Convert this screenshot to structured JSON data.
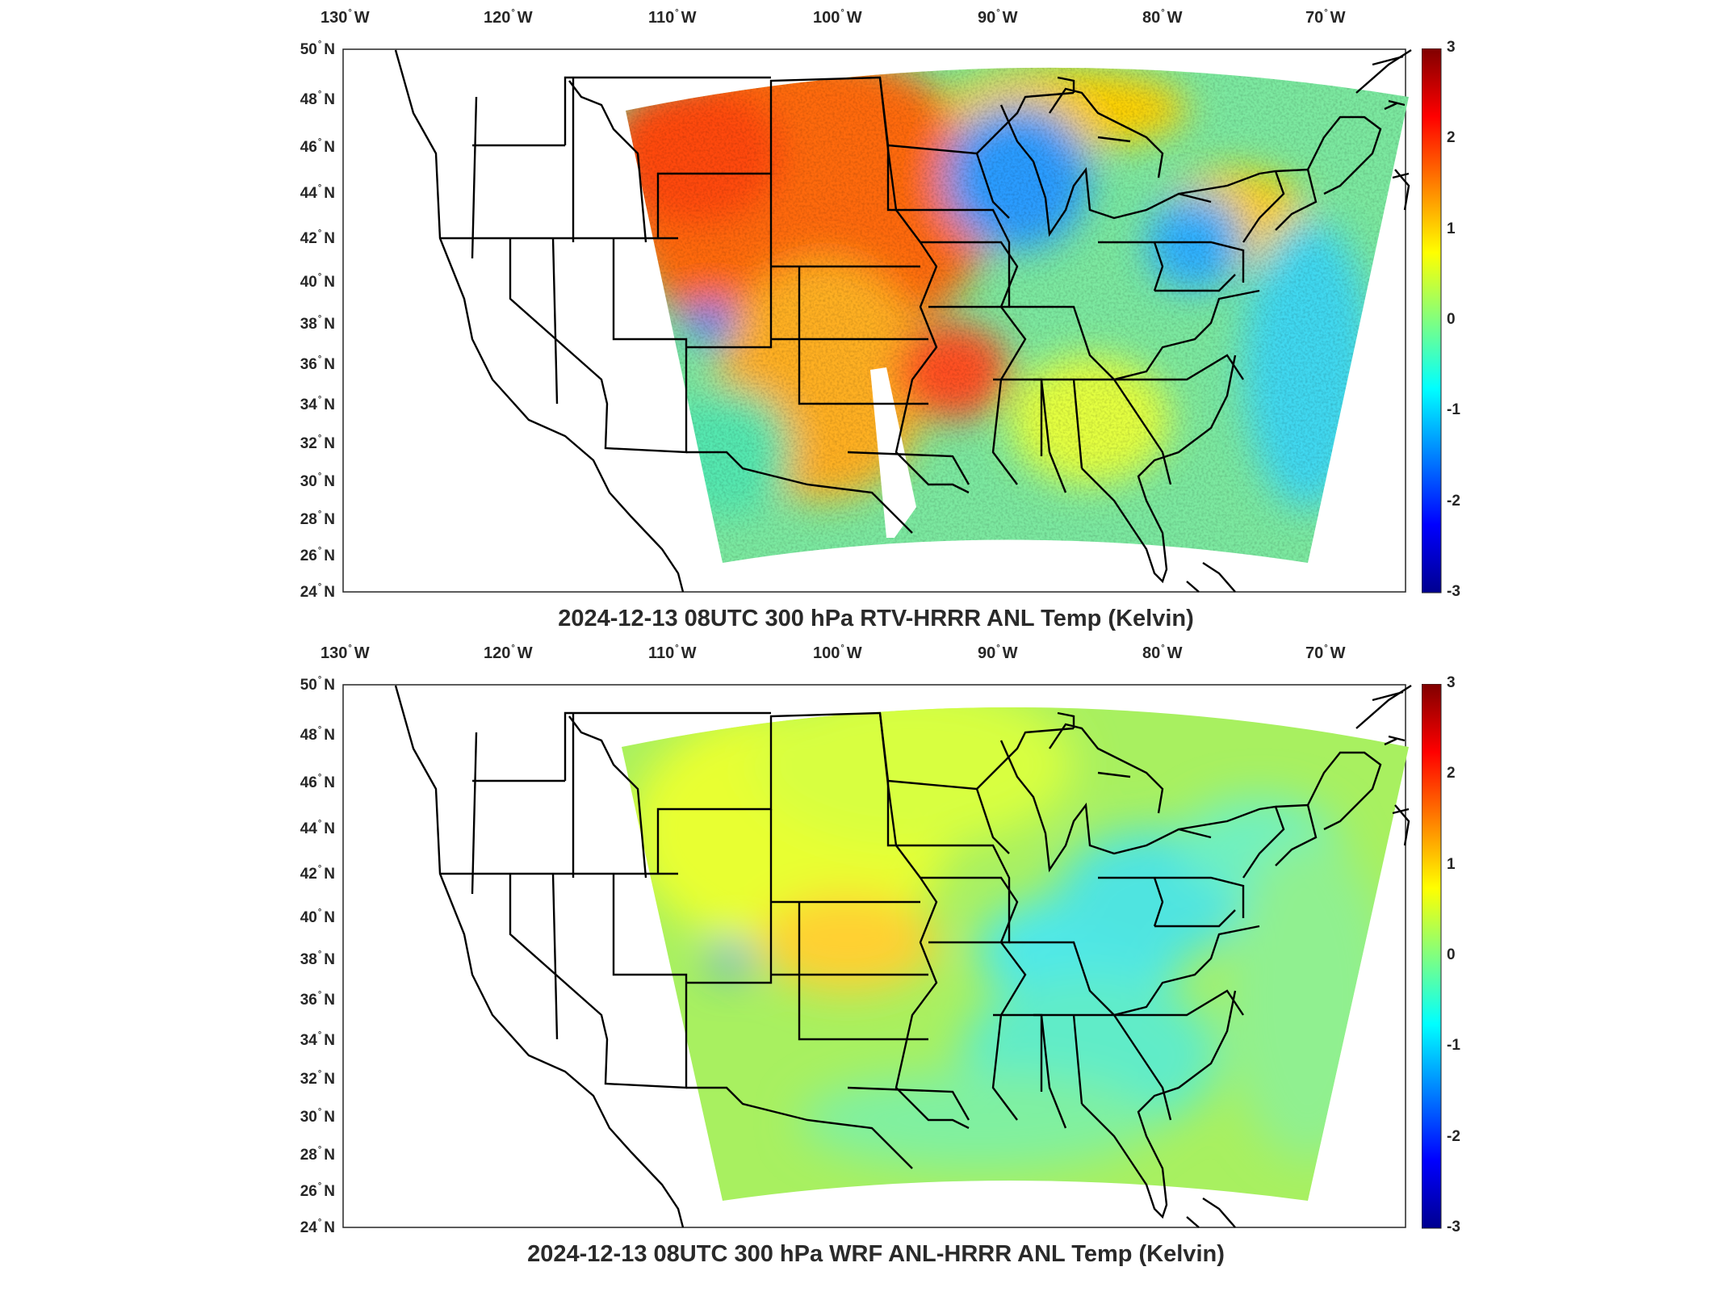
{
  "panels": [
    {
      "id": "top",
      "title": "2024-12-13 08UTC 300 hPa RTV-HRRR ANL Temp (Kelvin)",
      "field": "rtv",
      "lon_ticks": [
        {
          "deg": "130",
          "hemi": "W"
        },
        {
          "deg": "120",
          "hemi": "W"
        },
        {
          "deg": "110",
          "hemi": "W"
        },
        {
          "deg": "100",
          "hemi": "W"
        },
        {
          "deg": "90",
          "hemi": "W"
        },
        {
          "deg": "80",
          "hemi": "W"
        },
        {
          "deg": "70",
          "hemi": "W"
        }
      ],
      "lat_ticks": [
        {
          "deg": "50",
          "hemi": "N"
        },
        {
          "deg": "48",
          "hemi": "N"
        },
        {
          "deg": "46",
          "hemi": "N"
        },
        {
          "deg": "44",
          "hemi": "N"
        },
        {
          "deg": "42",
          "hemi": "N"
        },
        {
          "deg": "40",
          "hemi": "N"
        },
        {
          "deg": "38",
          "hemi": "N"
        },
        {
          "deg": "36",
          "hemi": "N"
        },
        {
          "deg": "34",
          "hemi": "N"
        },
        {
          "deg": "32",
          "hemi": "N"
        },
        {
          "deg": "30",
          "hemi": "N"
        },
        {
          "deg": "28",
          "hemi": "N"
        },
        {
          "deg": "26",
          "hemi": "N"
        },
        {
          "deg": "24",
          "hemi": "N"
        }
      ],
      "colorbar_ticks": [
        "3",
        "2",
        "1",
        "0",
        "-1",
        "-2",
        "-3"
      ]
    },
    {
      "id": "bottom",
      "title": "2024-12-13 08UTC 300 hPa WRF ANL-HRRR ANL Temp (Kelvin)",
      "field": "wrf",
      "lon_ticks": [
        {
          "deg": "130",
          "hemi": "W"
        },
        {
          "deg": "120",
          "hemi": "W"
        },
        {
          "deg": "110",
          "hemi": "W"
        },
        {
          "deg": "100",
          "hemi": "W"
        },
        {
          "deg": "90",
          "hemi": "W"
        },
        {
          "deg": "80",
          "hemi": "W"
        },
        {
          "deg": "70",
          "hemi": "W"
        }
      ],
      "lat_ticks": [
        {
          "deg": "50",
          "hemi": "N"
        },
        {
          "deg": "48",
          "hemi": "N"
        },
        {
          "deg": "46",
          "hemi": "N"
        },
        {
          "deg": "44",
          "hemi": "N"
        },
        {
          "deg": "42",
          "hemi": "N"
        },
        {
          "deg": "40",
          "hemi": "N"
        },
        {
          "deg": "38",
          "hemi": "N"
        },
        {
          "deg": "36",
          "hemi": "N"
        },
        {
          "deg": "34",
          "hemi": "N"
        },
        {
          "deg": "32",
          "hemi": "N"
        },
        {
          "deg": "30",
          "hemi": "N"
        },
        {
          "deg": "28",
          "hemi": "N"
        },
        {
          "deg": "26",
          "hemi": "N"
        },
        {
          "deg": "24",
          "hemi": "N"
        }
      ],
      "colorbar_ticks": [
        "3",
        "2",
        "1",
        "0",
        "-1",
        "-2",
        "-3"
      ]
    }
  ],
  "map": {
    "lon_range": [
      -130,
      -64
    ],
    "lat_range": [
      24,
      50
    ],
    "colormap": "jet",
    "colorbar_range": [
      -3,
      3
    ],
    "colors": {
      "jet_dark_red": "#800000",
      "jet_red": "#ff0000",
      "jet_orange": "#ff8000",
      "jet_yellow": "#ffff00",
      "jet_green": "#80ff80",
      "jet_cyan": "#00ffff",
      "jet_blue": "#0080ff",
      "jet_dark_blue": "#00008f"
    }
  }
}
